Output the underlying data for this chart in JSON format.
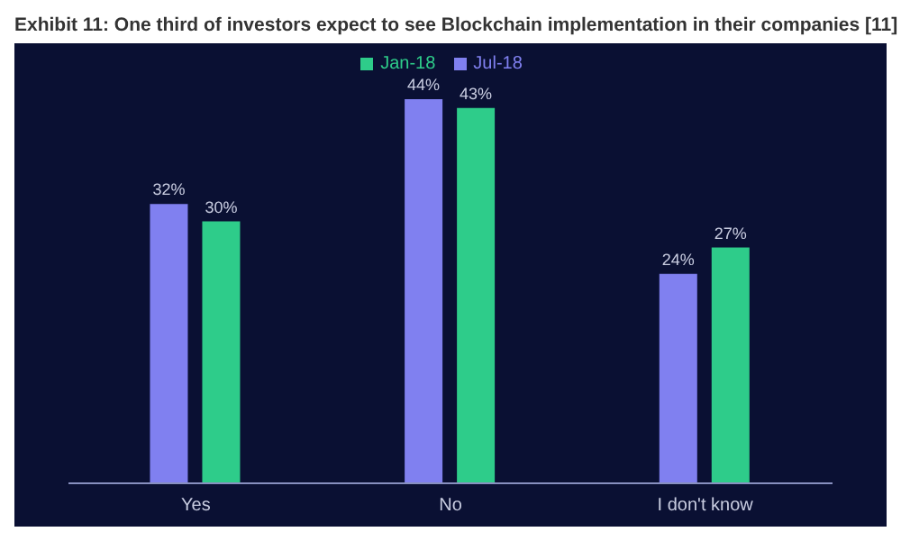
{
  "chart_data": {
    "type": "bar",
    "title": "Exhibit 11: One third of investors expect to see Blockchain implementation in their companies [11]",
    "categories": [
      "Yes",
      "No",
      "I don't know"
    ],
    "series": [
      {
        "name": "Jul-18",
        "color": "#8080f0",
        "values": [
          32,
          44,
          24
        ],
        "value_labels": [
          "32%",
          "44%",
          "24%"
        ]
      },
      {
        "name": "Jan-18",
        "color": "#2ecc8a",
        "values": [
          30,
          43,
          27
        ],
        "value_labels": [
          "30%",
          "43%",
          "27%"
        ]
      }
    ],
    "legend": "top",
    "grid": false
  }
}
